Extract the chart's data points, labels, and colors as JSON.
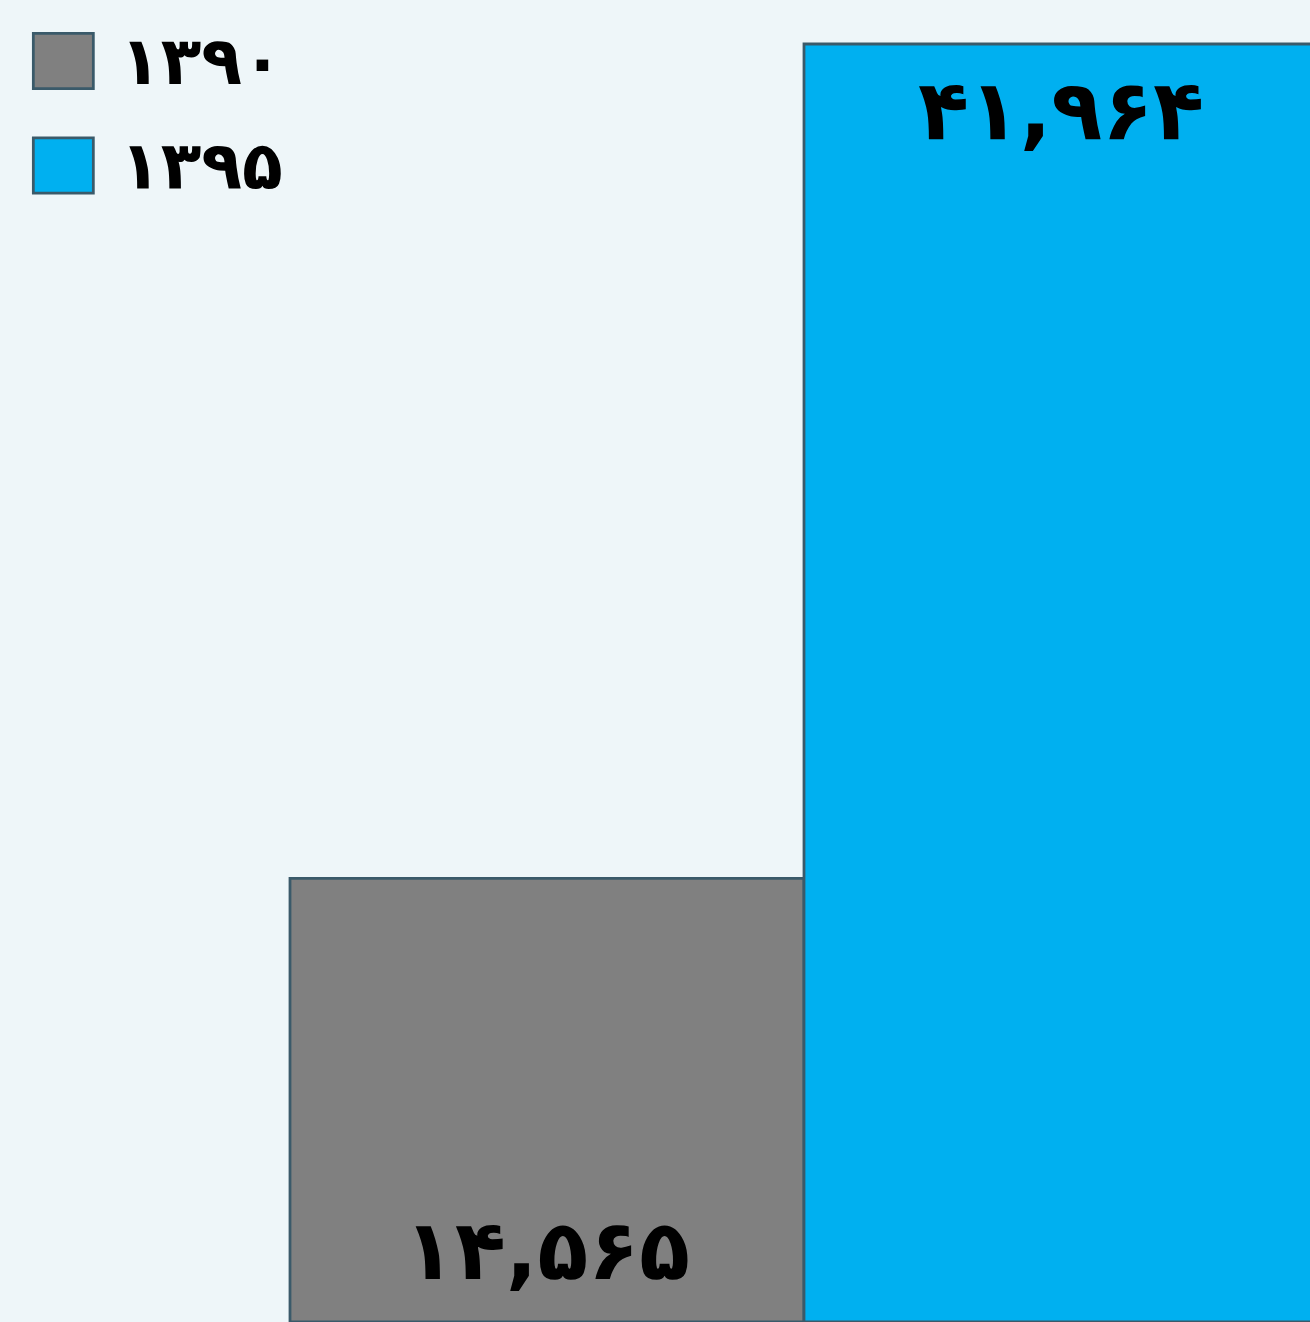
{
  "chart_data": {
    "type": "bar",
    "categories": [
      null
    ],
    "legend": "top left",
    "series": [
      {
        "name": "۱۳۹۰",
        "color": "#808080",
        "values": [
          14565
        ],
        "value_labels": [
          "۱۴,۵۶۵"
        ]
      },
      {
        "name": "۱۳۹۵",
        "color": "#00b0f0",
        "values": [
          41964
        ],
        "value_labels": [
          "۴۱,۹۶۴"
        ]
      }
    ]
  }
}
